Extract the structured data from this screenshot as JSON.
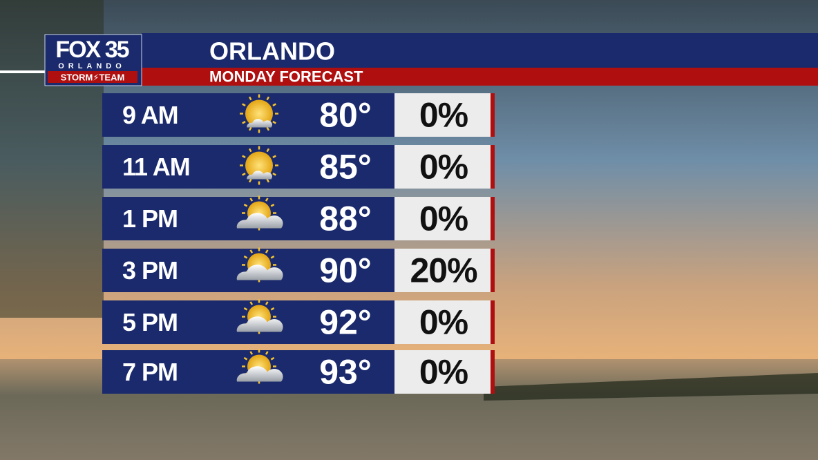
{
  "logo": {
    "brand": "FOX 35",
    "city": "ORLANDO",
    "team": "STORM⚡TEAM"
  },
  "header": {
    "title": "ORLANDO",
    "subtitle": "MONDAY FORECAST"
  },
  "table": {
    "rows": [
      [
        "9 AM",
        "80°",
        "0%"
      ],
      [
        "11 AM",
        "85°",
        "0%"
      ],
      [
        "1 PM",
        "88°",
        "0%"
      ],
      [
        "3 PM",
        "90°",
        "20%"
      ],
      [
        "5 PM",
        "92°",
        "0%"
      ],
      [
        "7 PM",
        "93°",
        "0%"
      ]
    ]
  }
}
